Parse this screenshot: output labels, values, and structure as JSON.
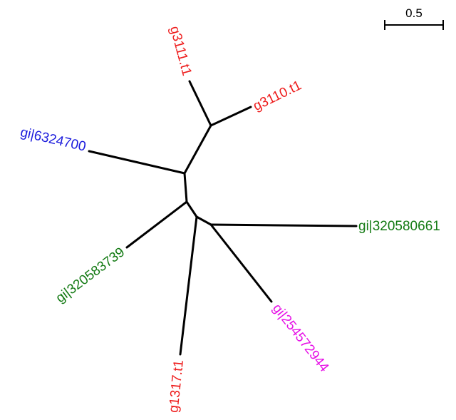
{
  "scale_bar": {
    "label": "0.5"
  },
  "colors": {
    "branch": "#000000",
    "red": "#ee1c1c",
    "blue": "#1a1adc",
    "green": "#137a13",
    "magenta": "#e60ee6"
  },
  "leaves": {
    "g3111": {
      "label": "g3111.t1",
      "color": "#ee1c1c"
    },
    "g3110": {
      "label": "g3110.t1",
      "color": "#ee1c1c"
    },
    "gi6324700": {
      "label": "gi|6324700",
      "color": "#1a1adc"
    },
    "gi320580661": {
      "label": "gi|320580661",
      "color": "#137a13"
    },
    "gi320583739": {
      "label": "gi|320583739",
      "color": "#137a13"
    },
    "gi254572944": {
      "label": "gi|254572944",
      "color": "#e60ee6"
    },
    "g1317": {
      "label": "g1317.t1",
      "color": "#ee1c1c"
    }
  }
}
